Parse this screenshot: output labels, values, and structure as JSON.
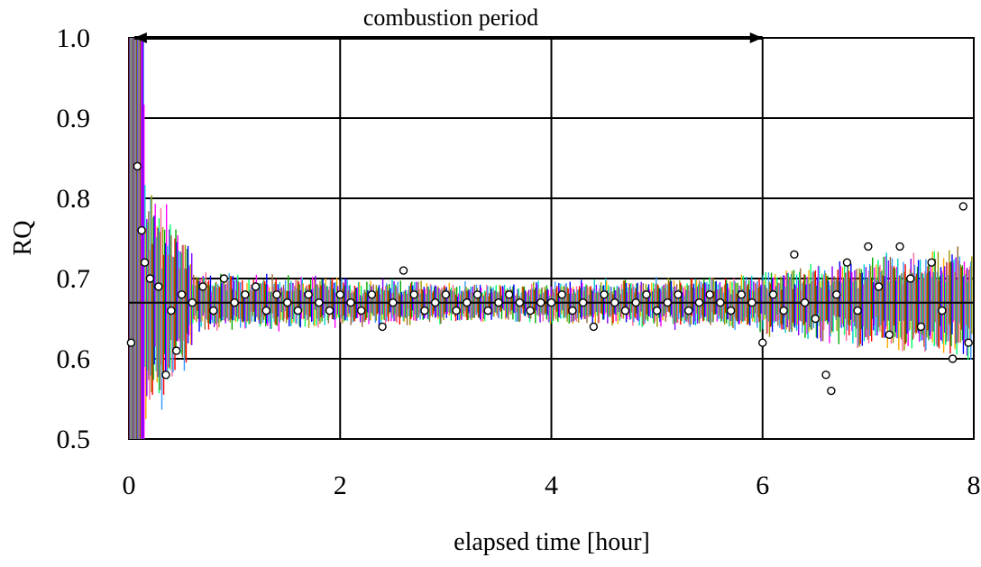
{
  "chart_data": {
    "type": "scatter",
    "title": "",
    "xlabel": "elapsed time [hour]",
    "ylabel": "RQ",
    "xlim": [
      0,
      8
    ],
    "ylim": [
      0.5,
      1.0
    ],
    "x_ticks": [
      0,
      2,
      4,
      6,
      8
    ],
    "x_tick_labels": [
      "0",
      "2",
      "4",
      "6",
      "8"
    ],
    "y_ticks": [
      0.5,
      0.6,
      0.7,
      0.8,
      0.9,
      1.0
    ],
    "y_tick_labels": [
      "0.5",
      "0.6",
      "0.7",
      "0.8",
      "0.9",
      "1.0"
    ],
    "grid": true,
    "reference_line": {
      "y": 0.67,
      "color": "#000000"
    },
    "annotation": {
      "text": "combustion period",
      "x_start": 0.05,
      "x_end": 6.0,
      "y": 1.0
    },
    "colors": [
      "#ff0000",
      "#00aa00",
      "#0000ff",
      "#ff00ff",
      "#00cccc",
      "#ffaa00",
      "#7f00ff",
      "#00ff66",
      "#996633",
      "#ff6699",
      "#3399ff",
      "#999900",
      "#000000"
    ],
    "series": [
      {
        "marker": "open-circle",
        "x": [
          0.02,
          0.08,
          0.12,
          0.15,
          0.2,
          0.28,
          0.35,
          0.4,
          0.45,
          0.5,
          0.6,
          0.7,
          0.8,
          0.9,
          1.0,
          1.1,
          1.2,
          1.3,
          1.4,
          1.5,
          1.6,
          1.7,
          1.8,
          1.9,
          2.0,
          2.1,
          2.2,
          2.3,
          2.4,
          2.5,
          2.6,
          2.7,
          2.8,
          2.9,
          3.0,
          3.1,
          3.2,
          3.3,
          3.4,
          3.5,
          3.6,
          3.7,
          3.8,
          3.9,
          4.0,
          4.1,
          4.2,
          4.3,
          4.4,
          4.5,
          4.6,
          4.7,
          4.8,
          4.9,
          5.0,
          5.1,
          5.2,
          5.3,
          5.4,
          5.5,
          5.6,
          5.7,
          5.8,
          5.9,
          6.0,
          6.1,
          6.2,
          6.3,
          6.4,
          6.5,
          6.6,
          6.65,
          6.7,
          6.8,
          6.9,
          7.0,
          7.1,
          7.2,
          7.3,
          7.4,
          7.5,
          7.6,
          7.7,
          7.8,
          7.9,
          7.95
        ],
        "y": [
          0.62,
          0.84,
          0.76,
          0.72,
          0.7,
          0.69,
          0.58,
          0.66,
          0.61,
          0.68,
          0.67,
          0.69,
          0.66,
          0.7,
          0.67,
          0.68,
          0.69,
          0.66,
          0.68,
          0.67,
          0.66,
          0.68,
          0.67,
          0.66,
          0.68,
          0.67,
          0.66,
          0.68,
          0.64,
          0.67,
          0.71,
          0.68,
          0.66,
          0.67,
          0.68,
          0.66,
          0.67,
          0.68,
          0.66,
          0.67,
          0.68,
          0.67,
          0.66,
          0.67,
          0.67,
          0.68,
          0.66,
          0.67,
          0.64,
          0.68,
          0.67,
          0.66,
          0.67,
          0.68,
          0.66,
          0.67,
          0.68,
          0.66,
          0.67,
          0.68,
          0.67,
          0.66,
          0.68,
          0.67,
          0.62,
          0.68,
          0.66,
          0.73,
          0.67,
          0.65,
          0.58,
          0.56,
          0.68,
          0.72,
          0.66,
          0.74,
          0.69,
          0.63,
          0.74,
          0.7,
          0.64,
          0.72,
          0.66,
          0.6,
          0.79,
          0.62
        ]
      }
    ]
  }
}
